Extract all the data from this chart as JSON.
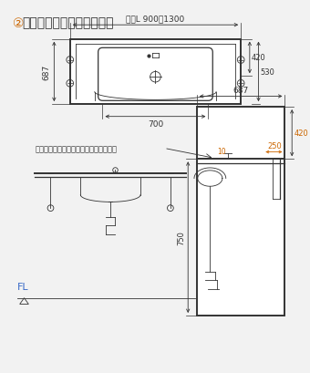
{
  "title_circle": "②",
  "title_text": "車いす対応洗面カウンター",
  "line_color": "#333333",
  "orange_color": "#cc6600",
  "blue_color": "#3a6bc8",
  "bg_color": "#f2f2f2",
  "dim_top": "最小L 900～1300",
  "dim_687": "687",
  "dim_420": "420",
  "dim_530": "530",
  "dim_700": "700",
  "dim_side_687": "687",
  "dim_side_420": "420",
  "dim_side_250": "250",
  "dim_side_10": "10",
  "dim_750": "750",
  "note": "取付位置の目安：カウンター手前端より",
  "fl_label": "FL"
}
